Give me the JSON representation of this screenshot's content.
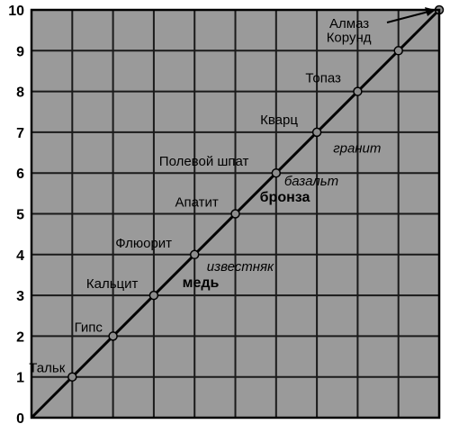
{
  "chart_data": {
    "type": "line",
    "xlim": [
      0,
      10
    ],
    "ylim": [
      0,
      10
    ],
    "yticks": [
      "0",
      "1",
      "2",
      "3",
      "4",
      "5",
      "6",
      "7",
      "8",
      "9",
      "10"
    ],
    "grid": true,
    "background_color": "#9a9a9a",
    "line_color": "#000000",
    "point_color": "#8e8e8e",
    "minerals": [
      {
        "label": "Тальк",
        "x": 1,
        "y": 1
      },
      {
        "label": "Гипс",
        "x": 2,
        "y": 2
      },
      {
        "label": "Кальцит",
        "x": 3,
        "y": 3
      },
      {
        "label": "Флюорит",
        "x": 4,
        "y": 4
      },
      {
        "label": "Апатит",
        "x": 5,
        "y": 5
      },
      {
        "label": "Полевой шпат",
        "x": 6,
        "y": 6
      },
      {
        "label": "Кварц",
        "x": 7,
        "y": 7
      },
      {
        "label": "Топаз",
        "x": 8,
        "y": 8
      },
      {
        "label": "Корунд",
        "x": 9,
        "y": 9
      },
      {
        "label": "Алмаз",
        "x": 10,
        "y": 10
      }
    ],
    "annotations": [
      {
        "label": "известняк",
        "x": 4.3,
        "y": 3.6,
        "style": "italic"
      },
      {
        "label": "медь",
        "x": 3.7,
        "y": 3.2,
        "style": "bold"
      },
      {
        "label": "бронза",
        "x": 5.6,
        "y": 5.3,
        "style": "bold"
      },
      {
        "label": "базальт",
        "x": 6.2,
        "y": 5.7,
        "style": "italic"
      },
      {
        "label": "гранит",
        "x": 7.4,
        "y": 6.5,
        "style": "italic"
      }
    ]
  }
}
